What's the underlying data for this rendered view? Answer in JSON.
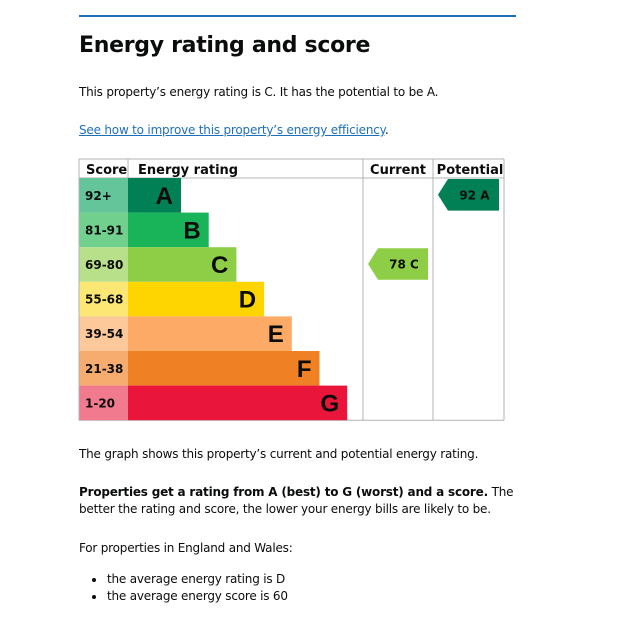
{
  "page": {
    "heading": "Energy rating and score",
    "intro": "This property’s energy rating is C. It has the potential to be A.",
    "link_text": "See how to improve this property’s energy efficiency",
    "link_suffix": ".",
    "graph_note": "The graph shows this property’s current and potential energy rating.",
    "rating_bold": "Properties get a rating from A (best) to G (worst) and a score.",
    "rating_rest": " The better the rating and score, the lower your energy bills are likely to be.",
    "region_intro": "For properties in England and Wales:",
    "bullets": [
      "the average energy rating is D",
      "the average energy score is 60"
    ]
  },
  "colors": {
    "rule": "#1d70b8",
    "link": "#1d70b8",
    "grid": "#b1b4b6"
  },
  "chart_data": {
    "type": "bar",
    "title": "",
    "headers": {
      "score": "Score",
      "rating": "Energy rating",
      "current": "Current",
      "potential": "Potential"
    },
    "bands": [
      {
        "letter": "A",
        "range": "92+",
        "min": 92,
        "max": 100,
        "color": "#008054",
        "tint": "#64c59b"
      },
      {
        "letter": "B",
        "range": "81-91",
        "min": 81,
        "max": 91,
        "color": "#19b459",
        "tint": "#72d08f"
      },
      {
        "letter": "C",
        "range": "69-80",
        "min": 69,
        "max": 80,
        "color": "#8dce46",
        "tint": "#b8e08a"
      },
      {
        "letter": "D",
        "range": "55-68",
        "min": 55,
        "max": 68,
        "color": "#ffd500",
        "tint": "#fde774"
      },
      {
        "letter": "E",
        "range": "39-54",
        "min": 39,
        "max": 54,
        "color": "#fcaa65",
        "tint": "#fdc89a"
      },
      {
        "letter": "F",
        "range": "21-38",
        "min": 21,
        "max": 38,
        "color": "#ef8023",
        "tint": "#f5ac6e"
      },
      {
        "letter": "G",
        "range": "1-20",
        "min": 1,
        "max": 20,
        "color": "#e9153b",
        "tint": "#f17a8f"
      }
    ],
    "current": {
      "score": 78,
      "band": "C",
      "label": "78 C"
    },
    "potential": {
      "score": 92,
      "band": "A",
      "label": "92 A"
    }
  }
}
